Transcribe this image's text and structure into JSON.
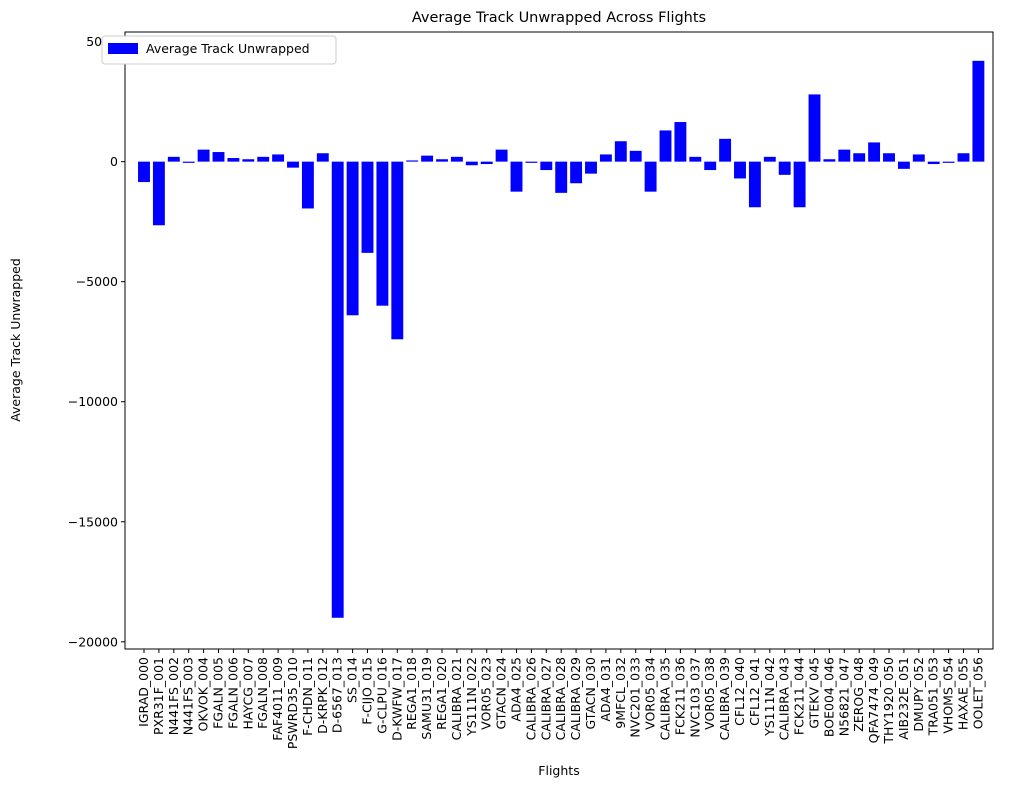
{
  "chart_data": {
    "type": "bar",
    "title": "Average Track Unwrapped Across Flights",
    "xlabel": "Flights",
    "ylabel": "Average Track Unwrapped",
    "legend": {
      "label": "Average Track Unwrapped",
      "placement": "top-left"
    },
    "color": "#0000ff",
    "ylim": [
      -20300,
      5400
    ],
    "yticks": [
      5000,
      0,
      -5000,
      -10000,
      -15000,
      -20000
    ],
    "ytick_labels": [
      "5000",
      "0",
      "−5000",
      "−10000",
      "−15000",
      "−20000"
    ],
    "grid": false,
    "categories": [
      "IGRAD_000",
      "PXR31F_001",
      "N441FS_002",
      "N441FS_003",
      "OKVOK_004",
      "FGALN_005",
      "FGALN_006",
      "HAYCG_007",
      "FGALN_008",
      "FAF4011_009",
      "PSWRD35_010",
      "F-CHDN_011",
      "D-KRPK_012",
      "D-6567_013",
      "SS_014",
      "F-CIJO_015",
      "G-CLPU_016",
      "D-KWFW_017",
      "REGA1_018",
      "SAMU31_019",
      "REGA1_020",
      "CALIBRA_021",
      "YS111N_022",
      "VOR05_023",
      "GTACN_024",
      "ADA4_025",
      "CALIBRA_026",
      "CALIBRA_027",
      "CALIBRA_028",
      "CALIBRA_029",
      "GTACN_030",
      "ADA4_031",
      "9MFCL_032",
      "NVC201_033",
      "VOR05_034",
      "CALIBRA_035",
      "FCK211_036",
      "NVC103_037",
      "VOR05_038",
      "CALIBRA_039",
      "CFL12_040",
      "CFL12_041",
      "YS111N_042",
      "CALIBRA_043",
      "FCK211_044",
      "GTEKV_045",
      "BOE004_046",
      "N56821_047",
      "ZEROG_048",
      "QFA7474_049",
      "THY1920_050",
      "AIB232E_051",
      "DMUPY_052",
      "TRA051_053",
      "VHOMS_054",
      "HAXAE_055",
      "OOLET_056"
    ],
    "values": [
      -850,
      -2650,
      200,
      -50,
      500,
      400,
      150,
      100,
      200,
      300,
      -250,
      -1950,
      350,
      -19000,
      -6400,
      -3800,
      -6000,
      -7400,
      50,
      250,
      100,
      200,
      -150,
      -100,
      500,
      -1250,
      -50,
      -350,
      -1300,
      -900,
      -500,
      300,
      850,
      450,
      -1250,
      1300,
      1650,
      200,
      -350,
      950,
      -700,
      -1900,
      200,
      -550,
      -1900,
      2800,
      100,
      500,
      350,
      800,
      350,
      -300,
      300,
      -100,
      -50,
      350,
      4200
    ]
  }
}
